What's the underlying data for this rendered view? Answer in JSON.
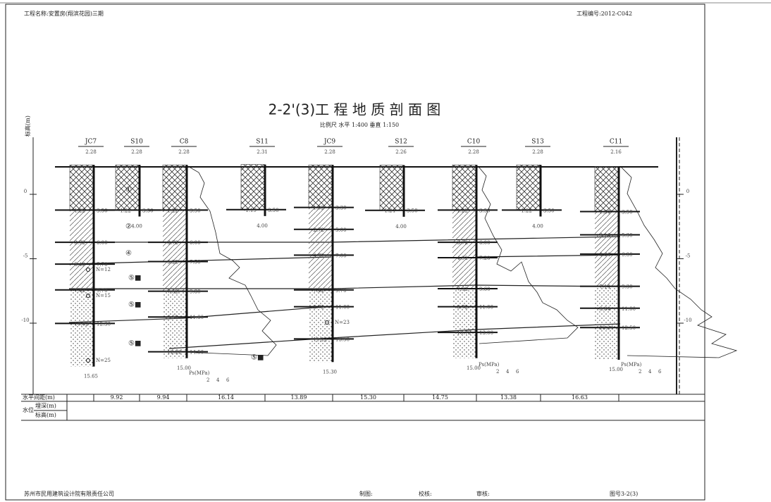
{
  "header": {
    "project": "工程名称:安置房(翔滨花园)三期",
    "project_no": "工程编号:2012-C042"
  },
  "title": "2-2'(3)工 程 地 质 剖 面 图",
  "scale": "比例尺 水平 1:400 垂直 1:150",
  "elevation_axis": {
    "label": "标高(m)",
    "ticks": [
      "0",
      "-5",
      "-10"
    ]
  },
  "boreholes": [
    {
      "name": "JC7",
      "elevation": "2.28",
      "depths": [
        "3.50",
        "6.00",
        "7.70",
        "9.70",
        "12.30"
      ],
      "elevations": [
        "-1.22",
        "-3.72",
        "-5.42",
        "-7.42",
        "-10.02"
      ],
      "bottom": "15.65",
      "notes": [
        "N=12",
        "N=15",
        "N=25"
      ]
    },
    {
      "name": "S10",
      "elevation": "2.28",
      "depths": [
        "3.50"
      ],
      "elevations": [
        "-1.22"
      ],
      "bottom": "4.00",
      "notes": []
    },
    {
      "name": "C8",
      "elevation": "2.28",
      "depths": [
        "3.50",
        "6.00",
        "7.50",
        "9.80",
        "11.80",
        "14.50"
      ],
      "elevations": [
        "-1.22",
        "-3.72",
        "-5.22",
        "-7.52",
        "-9.52",
        "-12.22"
      ],
      "bottom": "15.00",
      "notes": []
    },
    {
      "name": "S11",
      "elevation": "2.31",
      "depths": [
        "3.50"
      ],
      "elevations": [
        "-1.19"
      ],
      "bottom": "4.00",
      "notes": []
    },
    {
      "name": "JC9",
      "elevation": "2.28",
      "depths": [
        "3.30",
        "5.00",
        "7.00",
        "9.70",
        "11.00",
        "13.50"
      ],
      "elevations": [
        "-1.02",
        "-2.72",
        "-4.72",
        "-7.42",
        "-8.72",
        "-11.22"
      ],
      "bottom": "15.30",
      "notes": [
        "N=23"
      ]
    },
    {
      "name": "S12",
      "elevation": "2.26",
      "depths": [
        "3.50"
      ],
      "elevations": [
        "-1.24"
      ],
      "bottom": "4.00",
      "notes": []
    },
    {
      "name": "C10",
      "elevation": "2.28",
      "depths": [
        "3.50",
        "6.00",
        "7.20",
        "9.60",
        "11.00",
        "13.00"
      ],
      "elevations": [
        "-1.22",
        "-3.72",
        "-4.92",
        "-7.32",
        "-8.72",
        "-10.72"
      ],
      "bottom": "15.00",
      "notes": []
    },
    {
      "name": "S13",
      "elevation": "2.28",
      "depths": [
        "3.50"
      ],
      "elevations": [
        "-1.22"
      ],
      "bottom": "4.00",
      "notes": []
    },
    {
      "name": "C11",
      "elevation": "2.16",
      "depths": [
        "3.50",
        "5.30",
        "6.80",
        "9.30",
        "11.00",
        "12.50"
      ],
      "elevations": [
        "-1.34",
        "-3.14",
        "-4.64",
        "-7.14",
        "-8.84",
        "-10.34"
      ],
      "bottom": "15.00",
      "notes": []
    }
  ],
  "layers": [
    "①",
    "②",
    "④",
    "⑤■",
    "⑤■",
    "⑤■",
    "⑤■"
  ],
  "cpt_axis": {
    "label": "Ps(MPa)",
    "ticks": [
      "2",
      "4",
      "6"
    ]
  },
  "table": {
    "spacing_label": "水平间距(m)",
    "spacing": [
      "9.92",
      "9.94",
      "16.14",
      "13.89",
      "15.30",
      "14.75",
      "13.38",
      "16.63"
    ],
    "water_label": "水位",
    "water_depth": "埋深(m)",
    "water_elev": "标高(m)"
  },
  "footer": {
    "company": "苏州市民用建筑设计院有限责任公司",
    "drawn": "制图:",
    "checked": "校核:",
    "reviewed": "审核:",
    "drawing_no": "图号3-2(3)"
  }
}
